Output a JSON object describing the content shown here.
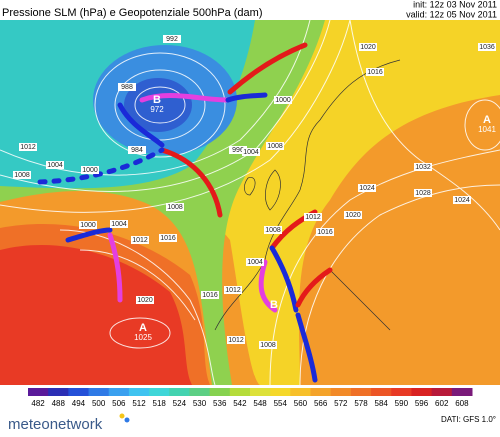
{
  "header": {
    "title": "Pressione SLM (hPa) e Geopotenziale 500hPa (dam)",
    "init": "init: 12z 03 Nov 2011",
    "valid": "valid: 12z 05 Nov 2011"
  },
  "centers": [
    {
      "letter": "B",
      "value": "972"
    },
    {
      "letter": "A",
      "value": "1041"
    },
    {
      "letter": "A",
      "value": "1025"
    },
    {
      "letter": "B",
      "value": ""
    }
  ],
  "isobar_labels": [
    "992",
    "988",
    "984",
    "996",
    "1000",
    "1004",
    "1008",
    "1000",
    "1004",
    "1008",
    "1012",
    "1000",
    "1004",
    "1008",
    "1012",
    "1016",
    "1020",
    "1016",
    "1012",
    "1004",
    "1008",
    "1012",
    "1016",
    "1020",
    "1024",
    "1028",
    "1032",
    "1020",
    "1016",
    "1024",
    "1036",
    "1012",
    "1008"
  ],
  "colorbar": {
    "labels": [
      "482",
      "488",
      "494",
      "500",
      "506",
      "512",
      "518",
      "524",
      "530",
      "536",
      "542",
      "548",
      "554",
      "560",
      "566",
      "572",
      "578",
      "584",
      "590",
      "596",
      "602",
      "608"
    ],
    "colors": [
      "#5a1a9a",
      "#2b2fb5",
      "#2450d8",
      "#2f7ae6",
      "#3aa0ef",
      "#3fc3f0",
      "#3fd6d8",
      "#43d3b0",
      "#5ccf84",
      "#86d24f",
      "#b5dc3a",
      "#dde13a",
      "#f5d82a",
      "#f7c02a",
      "#f4a32a",
      "#f28a28",
      "#ef7027",
      "#ec5526",
      "#e83a25",
      "#d92222",
      "#b81a3a",
      "#7a1a7a"
    ]
  },
  "footer": {
    "brand": "meteonetwork",
    "source": "DATI: GFS 1.0°"
  }
}
